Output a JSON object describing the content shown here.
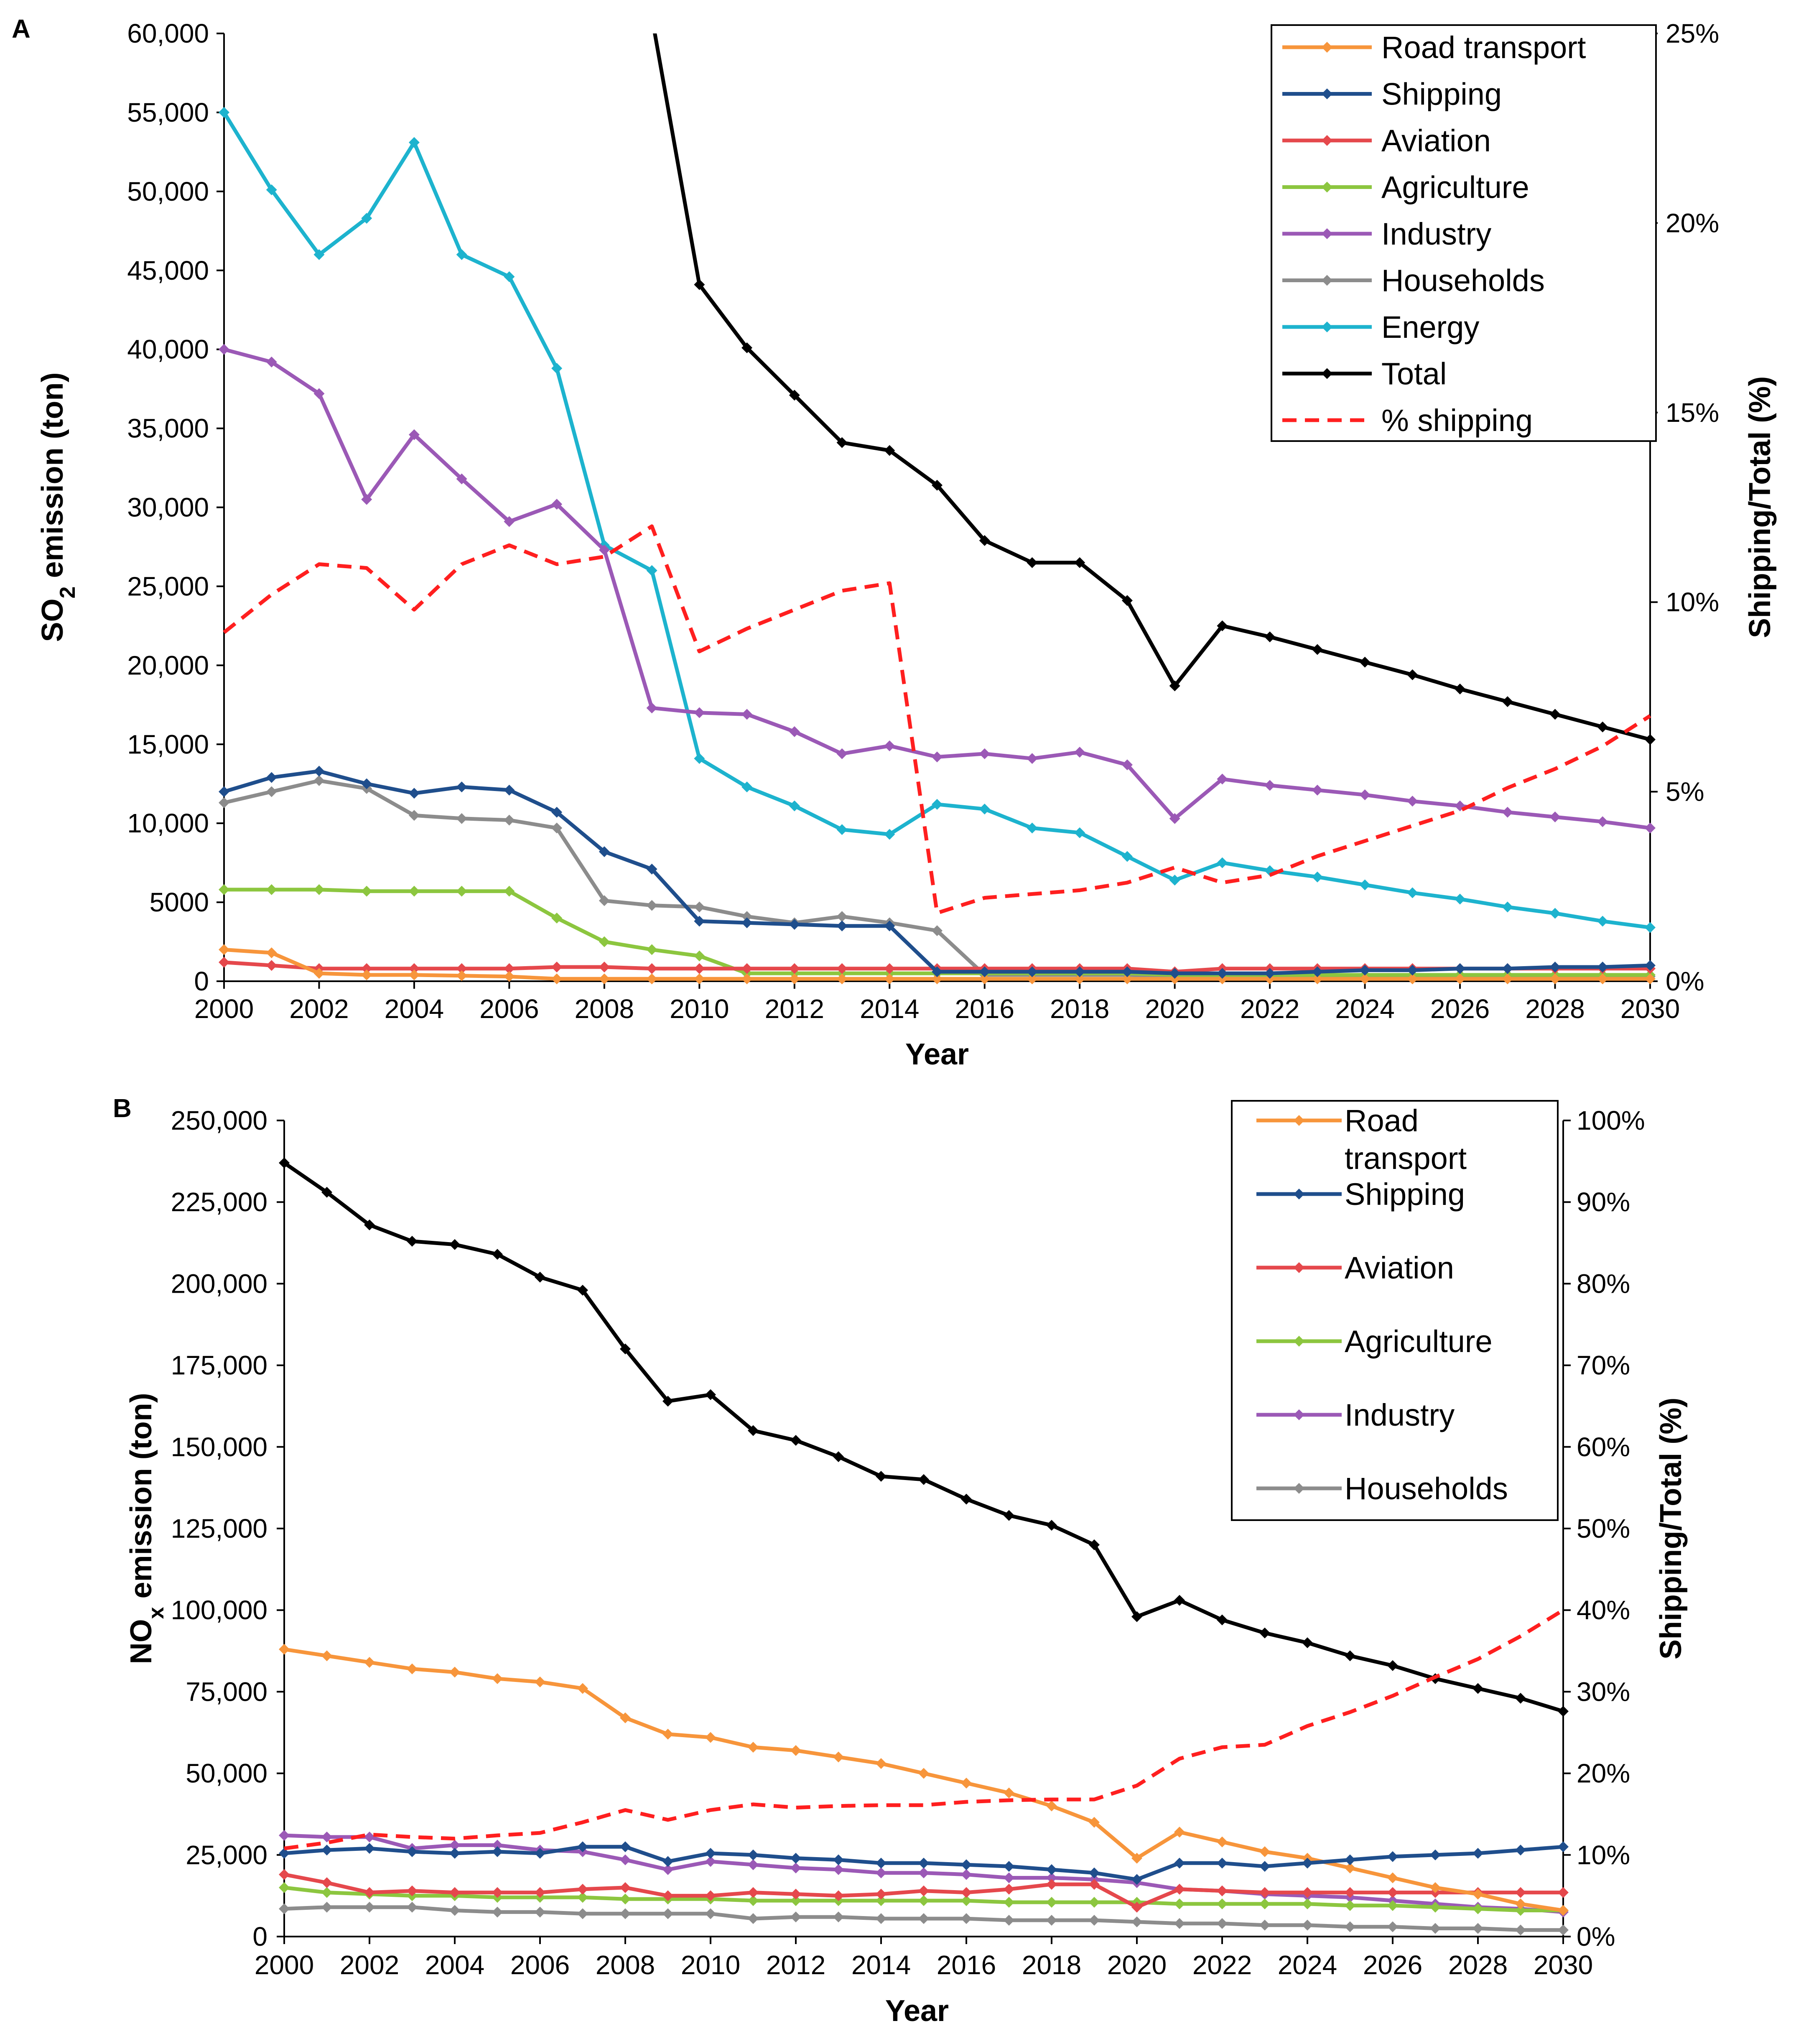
{
  "figure": {
    "panel_labels": [
      "A",
      "B"
    ]
  },
  "colors": {
    "Road transport": "#F7953B",
    "Shipping": "#1F4E8C",
    "Aviation": "#E5484C",
    "Agriculture": "#8CC63F",
    "Industry": "#9B59B6",
    "Households": "#8C8C8C",
    "Energy": "#1DB3CE",
    "Total": "#000000",
    "% shipping": "#FF1F1F"
  },
  "chart_data": [
    {
      "type": "line",
      "panel": "A",
      "title": "",
      "xlabel": "Year",
      "ylabel": "SO2 emission (ton)",
      "ylabel_main": "SO",
      "ylabel_sub": "2",
      "ylabel_rest": " emission (ton)",
      "y2label": "Shipping/Total (%)",
      "xlim": [
        2000,
        2030
      ],
      "ylim": [
        0,
        60000
      ],
      "y2lim": [
        0,
        25
      ],
      "x_ticks": [
        "2000",
        "2002",
        "2004",
        "2006",
        "2008",
        "2010",
        "2012",
        "2014",
        "2016",
        "2018",
        "2020",
        "2022",
        "2024",
        "2026",
        "2028",
        "2030"
      ],
      "y_ticks": [
        "0",
        "5000",
        "10,000",
        "15,000",
        "20,000",
        "25,000",
        "30,000",
        "35,000",
        "40,000",
        "45,000",
        "50,000",
        "55,000",
        "60,000"
      ],
      "y2_ticks": [
        "0%",
        "5%",
        "10%",
        "15%",
        "20%",
        "25%"
      ],
      "legend": [
        "Road transport",
        "Shipping",
        "Aviation",
        "Agriculture",
        "Industry",
        "Households",
        "Energy",
        "Total",
        "% shipping"
      ],
      "x": [
        2000,
        2001,
        2002,
        2003,
        2004,
        2005,
        2006,
        2007,
        2008,
        2009,
        2010,
        2011,
        2012,
        2013,
        2014,
        2015,
        2016,
        2017,
        2018,
        2019,
        2020,
        2021,
        2022,
        2023,
        2024,
        2025,
        2026,
        2027,
        2028,
        2029,
        2030
      ],
      "series": [
        {
          "name": "Road transport",
          "axis": "left",
          "values": [
            2000,
            1800,
            500,
            400,
            400,
            350,
            300,
            150,
            150,
            150,
            150,
            150,
            150,
            150,
            150,
            150,
            150,
            150,
            150,
            150,
            150,
            150,
            150,
            150,
            150,
            150,
            150,
            150,
            150,
            150,
            150
          ]
        },
        {
          "name": "Shipping",
          "axis": "left",
          "values": [
            12000,
            12900,
            13300,
            12500,
            11900,
            12300,
            12100,
            10700,
            8200,
            7100,
            3800,
            3700,
            3600,
            3500,
            3500,
            600,
            600,
            600,
            600,
            600,
            500,
            500,
            500,
            600,
            700,
            700,
            800,
            800,
            900,
            900,
            1000
          ]
        },
        {
          "name": "Aviation",
          "axis": "left",
          "values": [
            1200,
            1000,
            800,
            800,
            800,
            800,
            800,
            900,
            900,
            800,
            800,
            800,
            800,
            800,
            800,
            800,
            800,
            800,
            800,
            800,
            600,
            800,
            800,
            800,
            800,
            800,
            800,
            800,
            800,
            800,
            800
          ]
        },
        {
          "name": "Agriculture",
          "axis": "left",
          "values": [
            5800,
            5800,
            5800,
            5700,
            5700,
            5700,
            5700,
            4000,
            2500,
            2000,
            1600,
            500,
            500,
            500,
            500,
            500,
            500,
            500,
            500,
            500,
            400,
            400,
            400,
            400,
            400,
            400,
            400,
            400,
            400,
            400,
            400
          ]
        },
        {
          "name": "Industry",
          "axis": "left",
          "values": [
            40000,
            39200,
            37200,
            30500,
            34600,
            31800,
            29100,
            30200,
            27300,
            17300,
            17000,
            16900,
            15800,
            14400,
            14900,
            14200,
            14400,
            14100,
            14500,
            13700,
            10300,
            12800,
            12400,
            12100,
            11800,
            11400,
            11100,
            10700,
            10400,
            10100,
            9700
          ]
        },
        {
          "name": "Households",
          "axis": "left",
          "values": [
            11300,
            12000,
            12700,
            12200,
            10500,
            10300,
            10200,
            9700,
            5100,
            4800,
            4700,
            4100,
            3700,
            4100,
            3700,
            3200,
            400,
            400,
            400,
            400,
            300,
            300,
            300,
            300,
            300,
            300,
            300,
            300,
            300,
            300,
            300
          ]
        },
        {
          "name": "Energy",
          "axis": "left",
          "values": [
            55000,
            50100,
            46000,
            48300,
            53100,
            46000,
            44600,
            38800,
            27600,
            26000,
            14100,
            12300,
            11100,
            9600,
            9300,
            11200,
            10900,
            9700,
            9400,
            7900,
            6400,
            7500,
            7000,
            6600,
            6100,
            5600,
            5200,
            4700,
            4300,
            3800,
            3400
          ]
        },
        {
          "name": "Total",
          "axis": "left",
          "values": [
            null,
            null,
            null,
            null,
            null,
            null,
            null,
            null,
            null,
            null,
            44100,
            40100,
            37100,
            34100,
            33600,
            31400,
            27900,
            26500,
            26500,
            24100,
            18700,
            22500,
            21800,
            21000,
            20200,
            19400,
            18500,
            17700,
            16900,
            16100,
            15300
          ]
        },
        {
          "name": "% shipping",
          "axis": "right",
          "dashed": true,
          "values": [
            9.2,
            10.2,
            11.0,
            10.9,
            9.8,
            11.0,
            11.5,
            11.0,
            11.2,
            12.0,
            8.7,
            9.3,
            9.8,
            10.3,
            10.5,
            1.8,
            2.2,
            2.3,
            2.4,
            2.6,
            3.0,
            2.6,
            2.8,
            3.3,
            3.7,
            4.1,
            4.5,
            5.1,
            5.6,
            6.2,
            7.0
          ]
        }
      ],
      "total_clip_start": [
        2009,
        60000
      ]
    },
    {
      "type": "line",
      "panel": "B",
      "title": "",
      "xlabel": "Year",
      "ylabel": "NOx emission (ton)",
      "ylabel_main": "NO",
      "ylabel_sub": "x",
      "ylabel_rest": " emission (ton)",
      "y2label": "Shipping/Total (%)",
      "xlim": [
        2000,
        2030
      ],
      "ylim": [
        0,
        250000
      ],
      "y2lim": [
        0,
        100
      ],
      "x_ticks": [
        "2000",
        "2002",
        "2004",
        "2006",
        "2008",
        "2010",
        "2012",
        "2014",
        "2016",
        "2018",
        "2020",
        "2022",
        "2024",
        "2026",
        "2028",
        "2030"
      ],
      "y_ticks": [
        "0",
        "25,000",
        "50,000",
        "75,000",
        "100,000",
        "125,000",
        "150,000",
        "175,000",
        "200,000",
        "225,000",
        "250,000"
      ],
      "y2_ticks": [
        "0%",
        "10%",
        "20%",
        "30%",
        "40%",
        "50%",
        "60%",
        "70%",
        "80%",
        "90%",
        "100%"
      ],
      "legend": [
        "Road transport",
        "Shipping",
        "Aviation",
        "Agriculture",
        "Industry",
        "Households"
      ],
      "legend_display": [
        "Road\ntransport",
        "Shipping",
        "Aviation",
        "Agriculture",
        "Industry",
        "Households"
      ],
      "x": [
        2000,
        2001,
        2002,
        2003,
        2004,
        2005,
        2006,
        2007,
        2008,
        2009,
        2010,
        2011,
        2012,
        2013,
        2014,
        2015,
        2016,
        2017,
        2018,
        2019,
        2020,
        2021,
        2022,
        2023,
        2024,
        2025,
        2026,
        2027,
        2028,
        2029,
        2030
      ],
      "series": [
        {
          "name": "Road transport",
          "axis": "left",
          "values": [
            88000,
            86000,
            84000,
            82000,
            81000,
            79000,
            78000,
            76000,
            67000,
            62000,
            61000,
            58000,
            57000,
            55000,
            53000,
            50000,
            47000,
            44000,
            40000,
            35000,
            24000,
            32000,
            29000,
            26000,
            24000,
            21000,
            18000,
            15000,
            13000,
            10000,
            8000
          ]
        },
        {
          "name": "Shipping",
          "axis": "left",
          "values": [
            25500,
            26500,
            27000,
            26000,
            25500,
            26000,
            25500,
            27500,
            27500,
            23000,
            25500,
            25000,
            24000,
            23500,
            22500,
            22500,
            22000,
            21500,
            20500,
            19500,
            17500,
            22500,
            22500,
            21500,
            22500,
            23500,
            24500,
            25000,
            25500,
            26500,
            27500
          ]
        },
        {
          "name": "Aviation",
          "axis": "left",
          "values": [
            19000,
            16500,
            13500,
            14000,
            13500,
            13500,
            13500,
            14500,
            15000,
            12500,
            12500,
            13500,
            13000,
            12500,
            13000,
            14000,
            13500,
            14500,
            16000,
            16000,
            9000,
            14500,
            14000,
            13500,
            13500,
            13500,
            13500,
            13500,
            13500,
            13500,
            13500
          ]
        },
        {
          "name": "Agriculture",
          "axis": "left",
          "values": [
            15000,
            13500,
            13000,
            12500,
            12500,
            12000,
            12000,
            12000,
            11500,
            11500,
            11500,
            11000,
            11000,
            11000,
            11000,
            11000,
            11000,
            10500,
            10500,
            10500,
            10500,
            10000,
            10000,
            10000,
            10000,
            9500,
            9500,
            9000,
            8500,
            8000,
            8000
          ]
        },
        {
          "name": "Industry",
          "axis": "left",
          "values": [
            31000,
            30500,
            30500,
            27000,
            28000,
            28000,
            26500,
            26000,
            23500,
            20500,
            23000,
            22000,
            21000,
            20500,
            19500,
            19500,
            19000,
            18000,
            18000,
            17500,
            16500,
            14500,
            14000,
            13000,
            12500,
            12000,
            11000,
            10000,
            9000,
            8500,
            7500
          ]
        },
        {
          "name": "Households",
          "axis": "left",
          "values": [
            8500,
            9000,
            9000,
            9000,
            8000,
            7500,
            7500,
            7000,
            7000,
            7000,
            7000,
            5500,
            6000,
            6000,
            5500,
            5500,
            5500,
            5000,
            5000,
            5000,
            4500,
            4000,
            4000,
            3500,
            3500,
            3000,
            3000,
            2500,
            2500,
            2000,
            2000
          ]
        },
        {
          "name": "Total",
          "axis": "left",
          "values": [
            237000,
            228000,
            218000,
            213000,
            212000,
            209000,
            202000,
            198000,
            180000,
            164000,
            166000,
            155000,
            152000,
            147000,
            141000,
            140000,
            134000,
            129000,
            126000,
            120000,
            98000,
            103000,
            97000,
            93000,
            90000,
            86000,
            83000,
            79000,
            76000,
            73000,
            69000
          ]
        },
        {
          "name": "% shipping",
          "axis": "right",
          "dashed": true,
          "values": [
            10.8,
            11.5,
            12.5,
            12.2,
            12.0,
            12.4,
            12.7,
            14.0,
            15.5,
            14.3,
            15.5,
            16.2,
            15.8,
            16.0,
            16.1,
            16.1,
            16.5,
            16.7,
            16.8,
            16.8,
            18.5,
            21.8,
            23.2,
            23.5,
            25.8,
            27.5,
            29.5,
            31.8,
            34.0,
            36.8,
            40.0
          ]
        }
      ]
    }
  ]
}
